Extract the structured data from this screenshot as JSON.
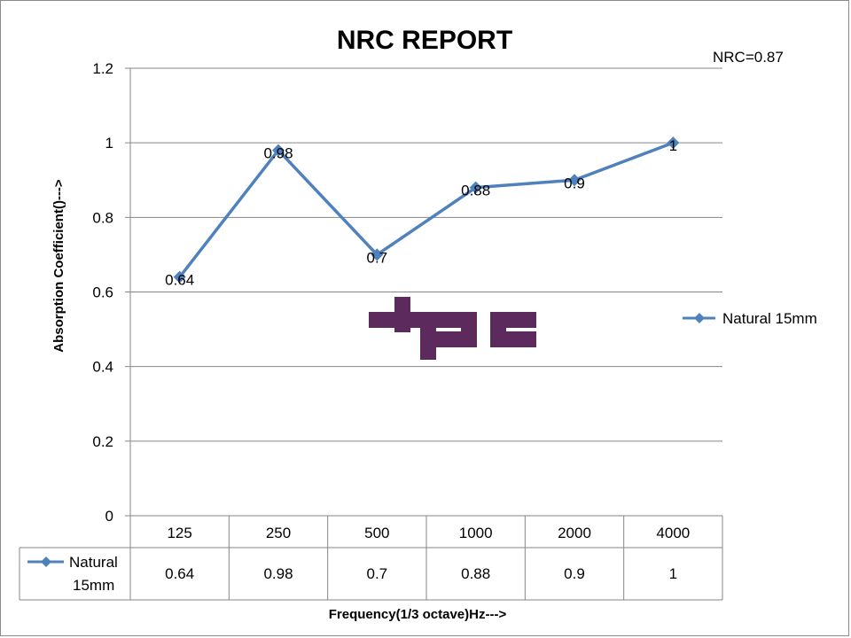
{
  "chart_data": {
    "type": "line",
    "title": "NRC REPORT",
    "annotation": "NRC=0.87",
    "xlabel": "Frequency(1/3 octave)Hz--->",
    "ylabel": "Absorption Coefficient()--->",
    "categories": [
      "125",
      "250",
      "500",
      "1000",
      "2000",
      "4000"
    ],
    "series": [
      {
        "name": "Natural 15mm",
        "values": [
          0.64,
          0.98,
          0.7,
          0.88,
          0.9,
          1
        ]
      }
    ],
    "data_labels": [
      "0.64",
      "0.98",
      "0.7",
      "0.88",
      "0.9",
      "1"
    ],
    "table_row_label_lines": [
      "Natural",
      "15mm"
    ],
    "table_values": [
      "0.64",
      "0.98",
      "0.7",
      "0.88",
      "0.9",
      "1"
    ],
    "ylim": [
      0,
      1.2
    ],
    "yticks": [
      "0",
      "0.2",
      "0.4",
      "0.6",
      "0.8",
      "1",
      "1.2"
    ],
    "ytick_values": [
      0,
      0.2,
      0.4,
      0.6,
      0.8,
      1,
      1.2
    ],
    "grid": true,
    "legend_position": "right",
    "series_color": "#4f81bd",
    "logo_color": "#5c2a5c",
    "watermark_text": "tpc"
  }
}
